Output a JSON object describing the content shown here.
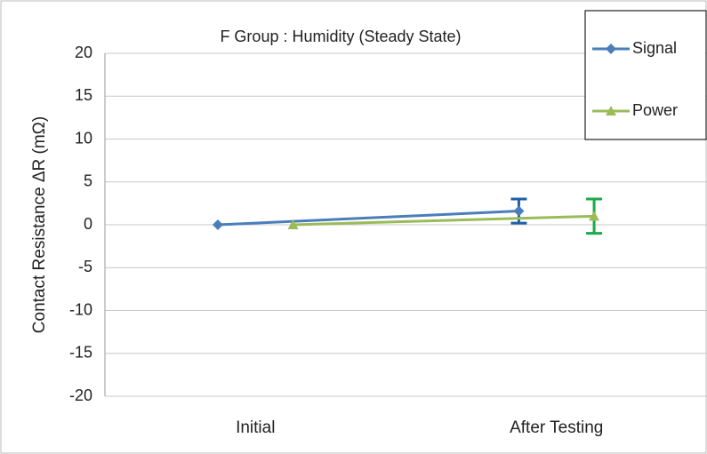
{
  "chart_data": {
    "type": "line",
    "title": "F Group : Humidity (Steady State)",
    "y_label": "Contact Resistance ΔR (mΩ)",
    "categories": [
      "Initial",
      "After Testing"
    ],
    "series": [
      {
        "name": "Signal",
        "color": "#4a7ebb",
        "error_color": "#1f5fa8",
        "marker": "diamond",
        "values": [
          0,
          1.6
        ],
        "errors": [
          null,
          1.4
        ]
      },
      {
        "name": "Power",
        "color": "#9bbb59",
        "error_color": "#1aaa4a",
        "marker": "triangle",
        "values": [
          0,
          1.0
        ],
        "errors": [
          null,
          2.0
        ]
      }
    ],
    "ylim": [
      -20,
      20
    ],
    "yticks": [
      -20,
      -15,
      -10,
      -5,
      0,
      5,
      10,
      15,
      20
    ],
    "grid": true,
    "legend": "top-right"
  }
}
